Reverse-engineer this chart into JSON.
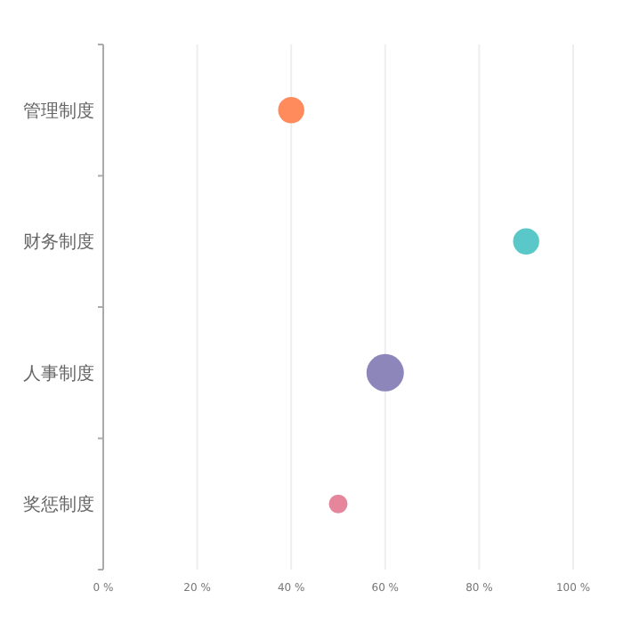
{
  "chart_data": {
    "type": "bubble",
    "orientation": "horizontal",
    "categories": [
      "管理制度",
      "财务制度",
      "人事制度",
      "奖惩制度"
    ],
    "values": [
      40,
      90,
      60,
      50
    ],
    "sizes": [
      0.49,
      0.49,
      1,
      0.25
    ],
    "colors": [
      "#ff8a5c",
      "#5ac8c8",
      "#8c86bb",
      "#e5869c"
    ],
    "xlim": [
      0,
      100
    ],
    "xticks": [
      {
        "value": 0,
        "label": "0 %"
      },
      {
        "value": 20,
        "label": "20 %"
      },
      {
        "value": 40,
        "label": "40 %"
      },
      {
        "value": 60,
        "label": "60 %"
      },
      {
        "value": 80,
        "label": "80 %"
      },
      {
        "value": 100,
        "label": "100 %"
      }
    ],
    "grid": "x"
  }
}
